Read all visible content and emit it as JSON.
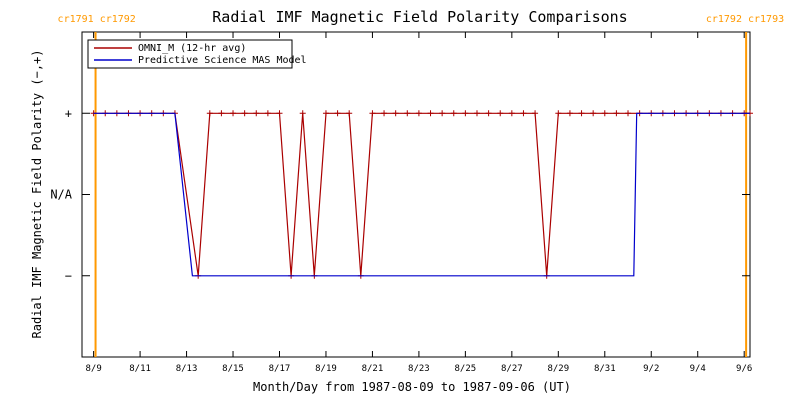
{
  "chart_data": {
    "type": "line",
    "title": "Radial IMF Magnetic Field Polarity Comparisons",
    "xlabel": "Month/Day from 1987-08-09 to 1987-09-06 (UT)",
    "ylabel": "Radial IMF Magnetic Field Polarity (−,+)",
    "x_start": "1987-08-09",
    "x_end": "1987-09-06",
    "xlim": [
      "1987-08-08T12:00",
      "1987-09-06T06:00"
    ],
    "x_tick_labels": [
      "8/9",
      "8/11",
      "8/13",
      "8/15",
      "8/17",
      "8/19",
      "8/21",
      "8/23",
      "8/25",
      "8/27",
      "8/29",
      "8/31",
      "9/2",
      "9/4",
      "9/6"
    ],
    "x_tick_dates": [
      "1987-08-09",
      "1987-08-11",
      "1987-08-13",
      "1987-08-15",
      "1987-08-17",
      "1987-08-19",
      "1987-08-21",
      "1987-08-23",
      "1987-08-25",
      "1987-08-27",
      "1987-08-29",
      "1987-08-31",
      "1987-09-02",
      "1987-09-04",
      "1987-09-06"
    ],
    "y_tick_labels": [
      "+",
      "N/A",
      "−"
    ],
    "y_tick_values": [
      1,
      0,
      -1
    ],
    "ylim": [
      -2,
      2
    ],
    "carrington_markers": [
      {
        "date": "1987-08-09T02:00",
        "label": "cr1791 cr1792",
        "color": "#ff9900",
        "align": "left"
      },
      {
        "date": "1987-09-06T02:00",
        "label": "cr1792 cr1793",
        "color": "#ff9900",
        "align": "right"
      }
    ],
    "series": [
      {
        "name": "OMNI_M (12-hr avg)",
        "color": "#aa0000",
        "marker": "plus",
        "points": [
          [
            "1987-08-09T00:00",
            1
          ],
          [
            "1987-08-09T12:00",
            1
          ],
          [
            "1987-08-10T00:00",
            1
          ],
          [
            "1987-08-10T12:00",
            1
          ],
          [
            "1987-08-11T00:00",
            1
          ],
          [
            "1987-08-11T12:00",
            1
          ],
          [
            "1987-08-12T00:00",
            1
          ],
          [
            "1987-08-12T12:00",
            1
          ],
          [
            "1987-08-13T12:00",
            -1
          ],
          [
            "1987-08-14T00:00",
            1
          ],
          [
            "1987-08-14T12:00",
            1
          ],
          [
            "1987-08-15T00:00",
            1
          ],
          [
            "1987-08-15T12:00",
            1
          ],
          [
            "1987-08-16T00:00",
            1
          ],
          [
            "1987-08-16T12:00",
            1
          ],
          [
            "1987-08-17T00:00",
            1
          ],
          [
            "1987-08-17T12:00",
            -1
          ],
          [
            "1987-08-18T00:00",
            1
          ],
          [
            "1987-08-18T12:00",
            -1
          ],
          [
            "1987-08-19T00:00",
            1
          ],
          [
            "1987-08-19T12:00",
            1
          ],
          [
            "1987-08-20T00:00",
            1
          ],
          [
            "1987-08-20T12:00",
            -1
          ],
          [
            "1987-08-21T00:00",
            1
          ],
          [
            "1987-08-21T12:00",
            1
          ],
          [
            "1987-08-22T00:00",
            1
          ],
          [
            "1987-08-22T12:00",
            1
          ],
          [
            "1987-08-23T00:00",
            1
          ],
          [
            "1987-08-23T12:00",
            1
          ],
          [
            "1987-08-24T00:00",
            1
          ],
          [
            "1987-08-24T12:00",
            1
          ],
          [
            "1987-08-25T00:00",
            1
          ],
          [
            "1987-08-25T12:00",
            1
          ],
          [
            "1987-08-26T00:00",
            1
          ],
          [
            "1987-08-26T12:00",
            1
          ],
          [
            "1987-08-27T00:00",
            1
          ],
          [
            "1987-08-27T12:00",
            1
          ],
          [
            "1987-08-28T00:00",
            1
          ],
          [
            "1987-08-28T12:00",
            -1
          ],
          [
            "1987-08-29T00:00",
            1
          ],
          [
            "1987-08-29T12:00",
            1
          ],
          [
            "1987-08-30T00:00",
            1
          ],
          [
            "1987-08-30T12:00",
            1
          ],
          [
            "1987-08-31T00:00",
            1
          ],
          [
            "1987-08-31T12:00",
            1
          ],
          [
            "1987-09-01T00:00",
            1
          ],
          [
            "1987-09-01T12:00",
            1
          ],
          [
            "1987-09-02T00:00",
            1
          ],
          [
            "1987-09-02T12:00",
            1
          ],
          [
            "1987-09-03T00:00",
            1
          ],
          [
            "1987-09-03T12:00",
            1
          ],
          [
            "1987-09-04T00:00",
            1
          ],
          [
            "1987-09-04T12:00",
            1
          ],
          [
            "1987-09-05T00:00",
            1
          ],
          [
            "1987-09-05T12:00",
            1
          ],
          [
            "1987-09-06T00:00",
            1
          ],
          [
            "1987-09-06T06:00",
            1
          ]
        ]
      },
      {
        "name": "Predictive Science MAS Model",
        "color": "#0000cc",
        "marker": "none",
        "points": [
          [
            "1987-08-09T00:00",
            1
          ],
          [
            "1987-08-12T12:00",
            1
          ],
          [
            "1987-08-13T06:00",
            -1
          ],
          [
            "1987-09-01T06:00",
            -1
          ],
          [
            "1987-09-01T09:00",
            1
          ],
          [
            "1987-09-06T06:00",
            1
          ]
        ]
      }
    ]
  }
}
